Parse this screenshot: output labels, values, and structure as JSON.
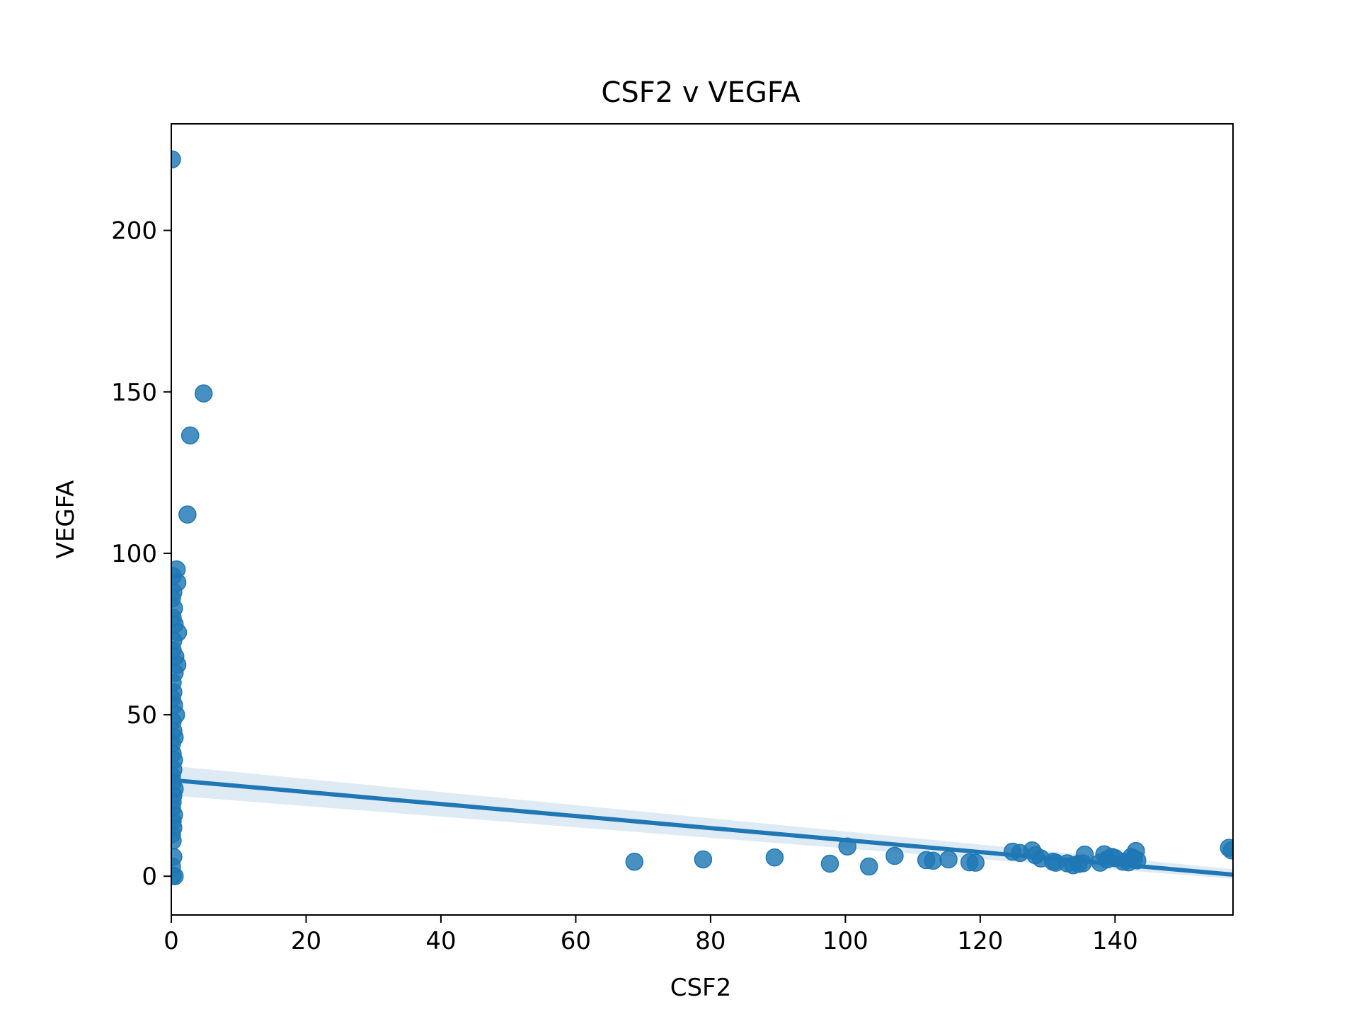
{
  "chart_data": {
    "type": "scatter",
    "title": "CSF2 v VEGFA",
    "xlabel": "CSF2",
    "ylabel": "VEGFA",
    "xlim": [
      0,
      157.5
    ],
    "ylim": [
      -12,
      233
    ],
    "xticks": [
      0,
      20,
      40,
      60,
      80,
      100,
      120,
      140
    ],
    "yticks": [
      0,
      50,
      100,
      150,
      200
    ],
    "grid": false,
    "legend": "none",
    "colors": {
      "points": "#1f77b4",
      "line": "#1f77b4",
      "band": "#1f77b4"
    },
    "points": [
      [
        0.1,
        222
      ],
      [
        4.8,
        149.5
      ],
      [
        2.8,
        136.5
      ],
      [
        2.4,
        112
      ],
      [
        0.8,
        95
      ],
      [
        0.9,
        91
      ],
      [
        0.2,
        93
      ],
      [
        0.3,
        88
      ],
      [
        0.1,
        86
      ],
      [
        0.4,
        83
      ],
      [
        0.2,
        80
      ],
      [
        0.5,
        78
      ],
      [
        1.0,
        75.5
      ],
      [
        0.3,
        73
      ],
      [
        0.2,
        70
      ],
      [
        0.6,
        68
      ],
      [
        0.9,
        65.5
      ],
      [
        0.5,
        63
      ],
      [
        0.2,
        60
      ],
      [
        0.3,
        57
      ],
      [
        0.1,
        55
      ],
      [
        0.4,
        53
      ],
      [
        0.7,
        50
      ],
      [
        0.2,
        48
      ],
      [
        0.3,
        45
      ],
      [
        0.5,
        43
      ],
      [
        0.1,
        41
      ],
      [
        0.2,
        38
      ],
      [
        0.4,
        36
      ],
      [
        0.3,
        33
      ],
      [
        0.1,
        31
      ],
      [
        0.2,
        29
      ],
      [
        0.5,
        27
      ],
      [
        0.3,
        25
      ],
      [
        0.2,
        23
      ],
      [
        0.1,
        21
      ],
      [
        0.4,
        19
      ],
      [
        0.2,
        17
      ],
      [
        0.3,
        15
      ],
      [
        0.1,
        13
      ],
      [
        0.2,
        11
      ],
      [
        0.3,
        6
      ],
      [
        0.1,
        3
      ],
      [
        0.2,
        0.2
      ],
      [
        0.5,
        0
      ],
      [
        68.7,
        4.5
      ],
      [
        78.9,
        5.2
      ],
      [
        89.5,
        5.8
      ],
      [
        97.7,
        3.9
      ],
      [
        100.3,
        9.2
      ],
      [
        103.5,
        3.0
      ],
      [
        107.3,
        6.3
      ],
      [
        112.0,
        5.0
      ],
      [
        113.0,
        4.8
      ],
      [
        115.3,
        5.2
      ],
      [
        118.4,
        4.3
      ],
      [
        119.3,
        4.2
      ],
      [
        124.8,
        7.6
      ],
      [
        125.9,
        7.2
      ],
      [
        127.7,
        8.0
      ],
      [
        128.2,
        6.5
      ],
      [
        129.0,
        5.5
      ],
      [
        130.8,
        4.5
      ],
      [
        131.2,
        4.2
      ],
      [
        132.9,
        4.0
      ],
      [
        133.8,
        3.4
      ],
      [
        134.6,
        3.8
      ],
      [
        135.2,
        4.0
      ],
      [
        135.5,
        6.7
      ],
      [
        137.8,
        4.2
      ],
      [
        138.4,
        6.8
      ],
      [
        138.8,
        5.2
      ],
      [
        139.5,
        6.0
      ],
      [
        140.0,
        5.6
      ],
      [
        141.2,
        4.5
      ],
      [
        142.0,
        4.3
      ],
      [
        142.4,
        6.0
      ],
      [
        142.8,
        5.5
      ],
      [
        143.1,
        7.8
      ],
      [
        143.3,
        4.9
      ],
      [
        156.9,
        8.8
      ],
      [
        157.3,
        8.0
      ]
    ],
    "regression": {
      "x": [
        0,
        157.5
      ],
      "y": [
        29.8,
        0.5
      ],
      "ci_low": [
        25.0,
        -0.8
      ],
      "ci_high": [
        34.2,
        2.2
      ]
    }
  }
}
